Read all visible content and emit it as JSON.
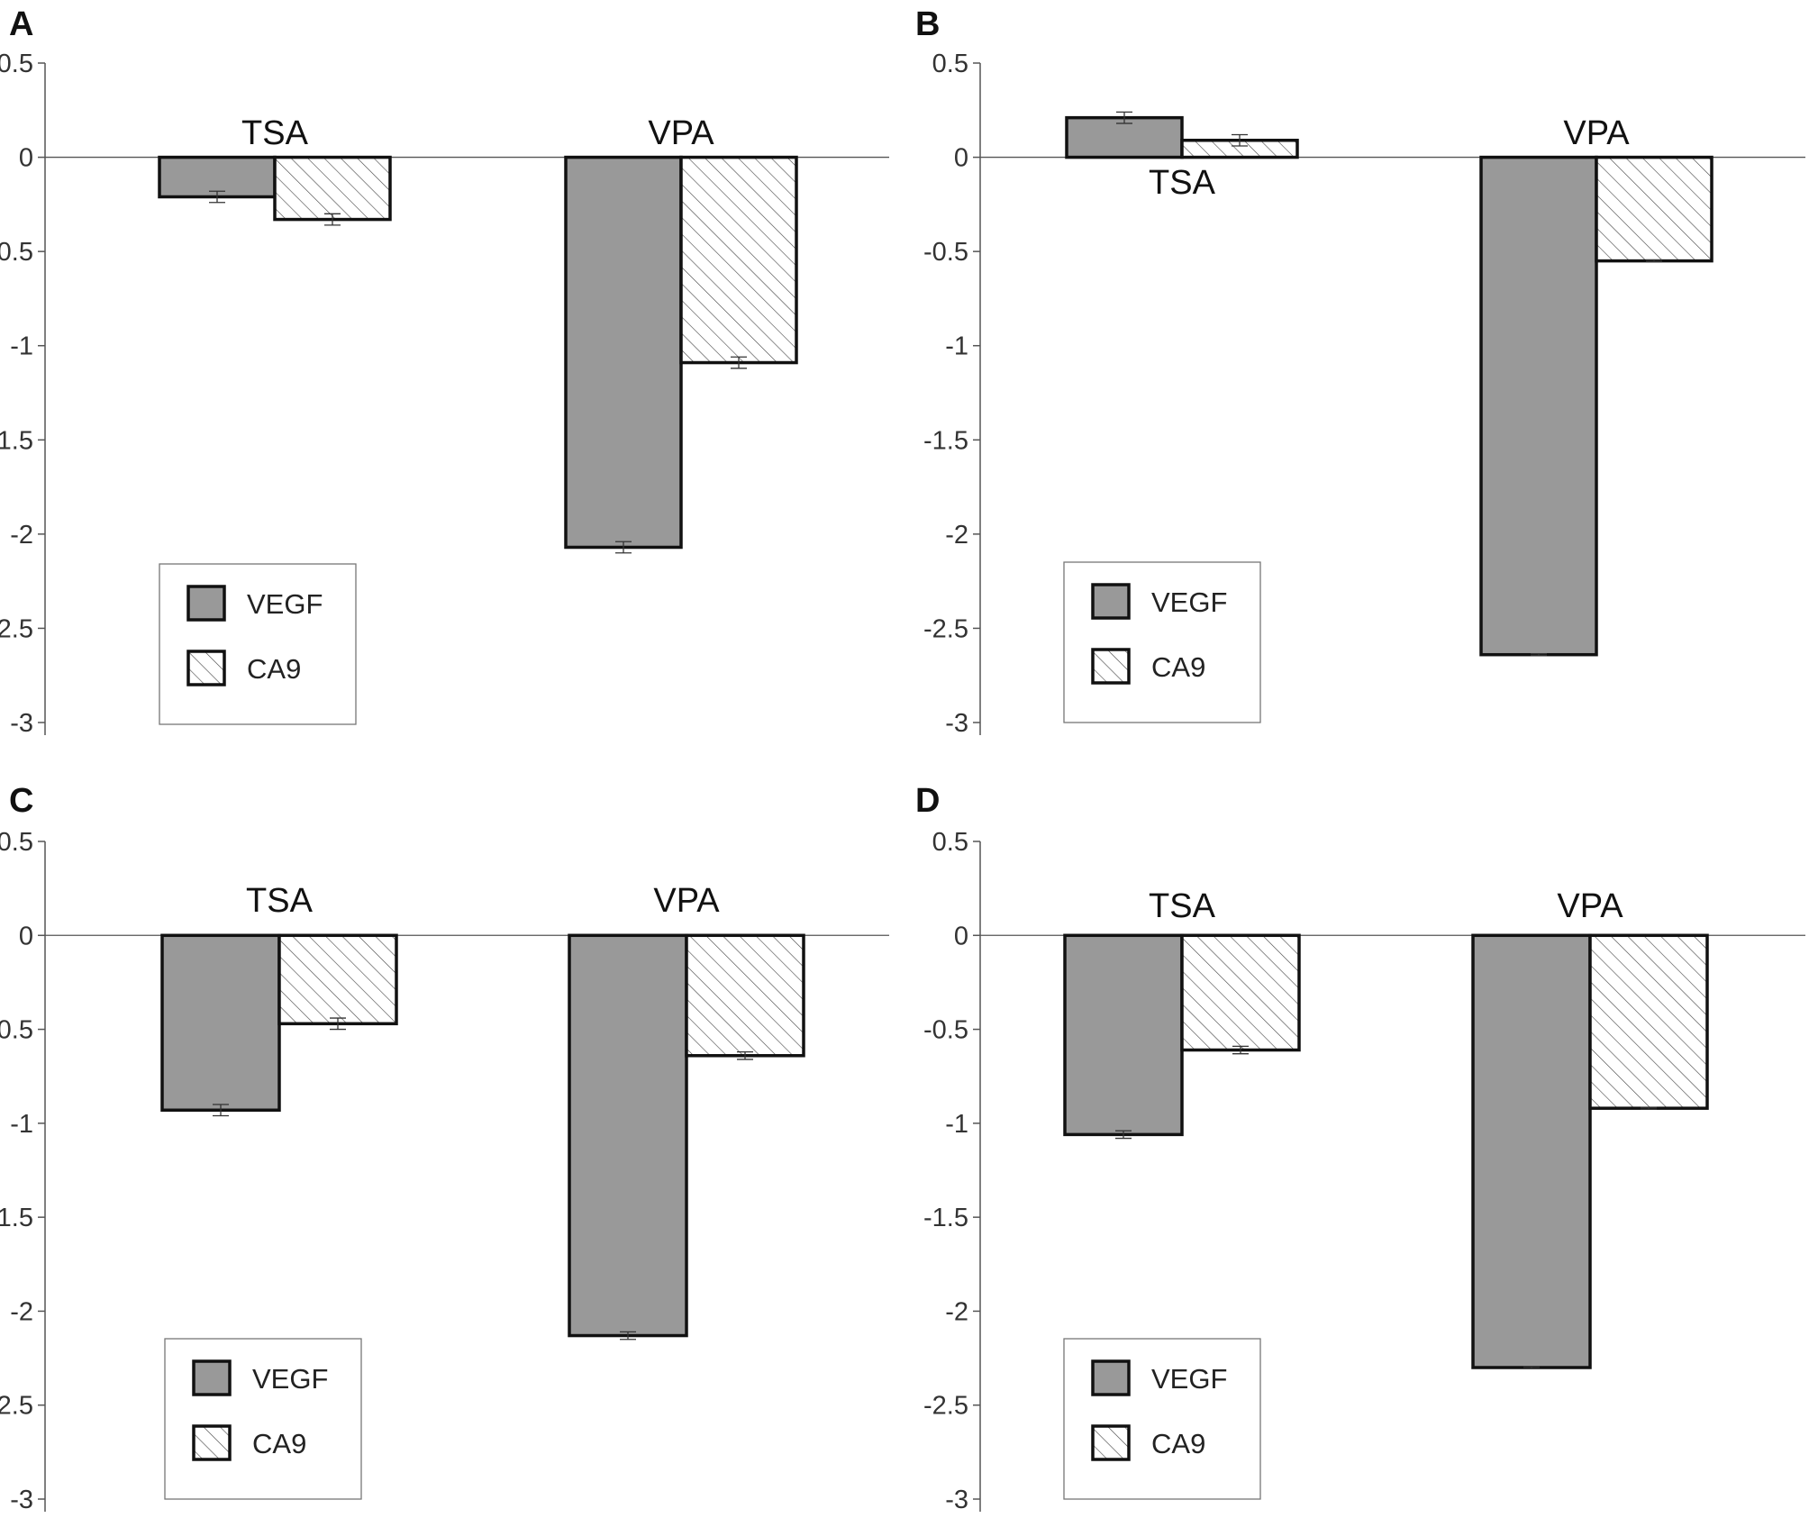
{
  "chart_data": [
    {
      "panel": "A",
      "type": "bar",
      "categories": [
        "TSA",
        "VPA"
      ],
      "series": [
        {
          "name": "VEGF",
          "values": [
            -0.21,
            -2.07
          ],
          "errors": [
            0.03,
            0.03
          ]
        },
        {
          "name": "CA9",
          "values": [
            -0.33,
            -1.09
          ],
          "errors": [
            0.03,
            0.03
          ]
        }
      ],
      "yticks": [
        "0.5",
        "0",
        "-0.5",
        "-1",
        "-1.5",
        "-2",
        "-2.5",
        "-3"
      ],
      "ylim": [
        -3,
        0.5
      ],
      "legend_position": "bottom-left"
    },
    {
      "panel": "B",
      "type": "bar",
      "categories": [
        "TSA",
        "VPA"
      ],
      "series": [
        {
          "name": "VEGF",
          "values": [
            0.21,
            -2.64
          ],
          "errors": [
            0.03,
            0.005
          ]
        },
        {
          "name": "CA9",
          "values": [
            0.09,
            -0.55
          ],
          "errors": [
            0.03,
            0.005
          ]
        }
      ],
      "yticks": [
        "0.5",
        "0",
        "-0.5",
        "-1",
        "-1.5",
        "-2",
        "-2.5",
        "-3"
      ],
      "ylim": [
        -3,
        0.5
      ],
      "legend_position": "bottom-left"
    },
    {
      "panel": "C",
      "type": "bar",
      "categories": [
        "TSA",
        "VPA"
      ],
      "series": [
        {
          "name": "VEGF",
          "values": [
            -0.93,
            -2.13
          ],
          "errors": [
            0.03,
            0.02
          ]
        },
        {
          "name": "CA9",
          "values": [
            -0.47,
            -0.64
          ],
          "errors": [
            0.03,
            0.02
          ]
        }
      ],
      "yticks": [
        "0.5",
        "0",
        "-0.5",
        "-1",
        "-1.5",
        "-2",
        "-2.5",
        "-3"
      ],
      "ylim": [
        -3,
        0.5
      ],
      "legend_position": "bottom-left"
    },
    {
      "panel": "D",
      "type": "bar",
      "categories": [
        "TSA",
        "VPA"
      ],
      "series": [
        {
          "name": "VEGF",
          "values": [
            -1.06,
            -2.3
          ],
          "errors": [
            0.02,
            0.005
          ]
        },
        {
          "name": "CA9",
          "values": [
            -0.61,
            -0.92
          ],
          "errors": [
            0.02,
            0.005
          ]
        }
      ],
      "yticks": [
        "0.5",
        "0",
        "-0.5",
        "-1",
        "-1.5",
        "-2",
        "-2.5",
        "-3"
      ],
      "ylim": [
        -3,
        0.5
      ],
      "legend_position": "bottom-left"
    }
  ],
  "style": {
    "vegf_fill": "#999999",
    "ca9_fill": "#ffffff",
    "hatch_color": "#444444",
    "bar_stroke": "#111111",
    "axis_color": "#555555"
  }
}
